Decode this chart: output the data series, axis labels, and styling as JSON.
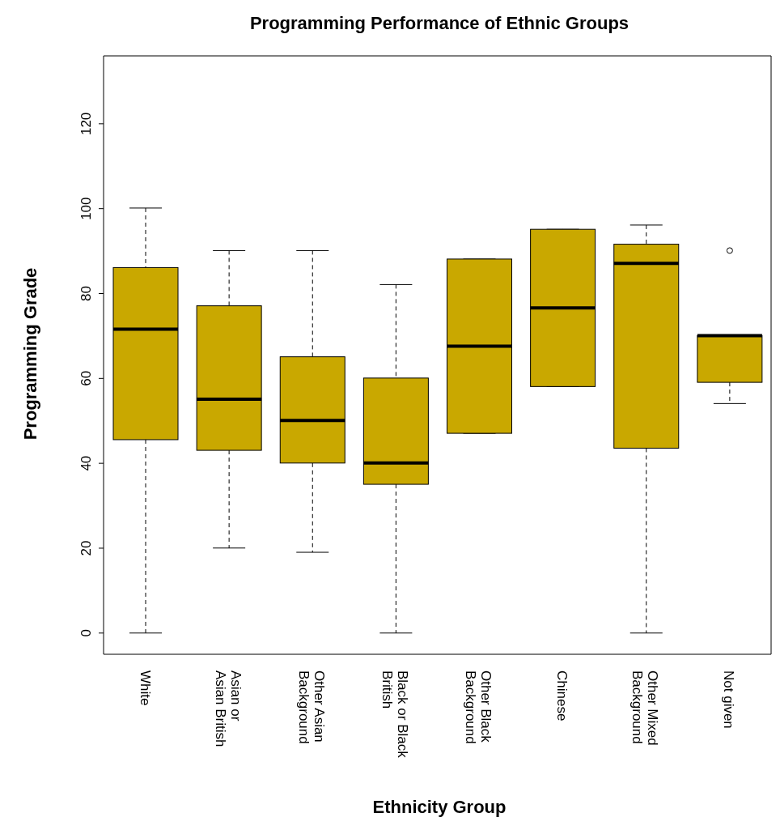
{
  "chart_data": {
    "type": "box",
    "title": "Programming Performance of Ethnic Groups",
    "xlabel": "Ethnicity Group",
    "ylabel": "Programming Grade",
    "categories": [
      "White",
      "Asian or\nAsian British",
      "Other Asian\nBackground",
      "Black or Black\nBritish",
      "Other Black\nBackground",
      "Chinese",
      "Other Mixed\nBackground",
      "Not given"
    ],
    "boxes": [
      {
        "low": 0,
        "q1": 45.5,
        "median": 71.5,
        "q3": 86,
        "high": 100
      },
      {
        "low": 20,
        "q1": 43,
        "median": 55,
        "q3": 77,
        "high": 90
      },
      {
        "low": 19,
        "q1": 40,
        "median": 50,
        "q3": 65,
        "high": 90
      },
      {
        "low": 0,
        "q1": 35,
        "median": 40,
        "q3": 60,
        "high": 82
      },
      {
        "low": 47,
        "q1": 47,
        "median": 67.5,
        "q3": 88,
        "high": 88
      },
      {
        "low": 58,
        "q1": 58,
        "median": 76.5,
        "q3": 95,
        "high": 95
      },
      {
        "low": 0,
        "q1": 43.5,
        "median": 87,
        "q3": 91.5,
        "high": 96
      },
      {
        "low": 54,
        "q1": 59,
        "median": 70,
        "q3": 70,
        "high": 70,
        "outliers": [
          90
        ]
      }
    ],
    "color": "#c9a800",
    "ylim": [
      -5,
      136
    ],
    "yticks": [
      0,
      20,
      40,
      60,
      80,
      100,
      120
    ],
    "grid": false
  }
}
